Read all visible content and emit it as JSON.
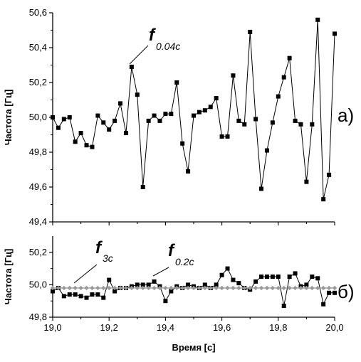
{
  "chart_data": [
    {
      "id": "a",
      "type": "line",
      "panel_label": "а)",
      "ylabel": "Частота [Гц]",
      "xlim": [
        19.0,
        20.0
      ],
      "ylim": [
        49.4,
        50.6
      ],
      "yticks": [
        "49,4",
        "49,6",
        "49,8",
        "50,0",
        "50,2",
        "50,4",
        "50,6"
      ],
      "annotations": [
        {
          "symbol": "f",
          "subscript": "0.04c",
          "x": 19.28,
          "y": 50.29
        }
      ],
      "series": [
        {
          "marker": "square",
          "color": "#000000",
          "x": [
            19.0,
            19.02,
            19.04,
            19.06,
            19.08,
            19.1,
            19.12,
            19.14,
            19.16,
            19.18,
            19.2,
            19.22,
            19.24,
            19.26,
            19.28,
            19.3,
            19.32,
            19.34,
            19.36,
            19.38,
            19.4,
            19.42,
            19.44,
            19.46,
            19.48,
            19.5,
            19.52,
            19.54,
            19.56,
            19.58,
            19.6,
            19.62,
            19.64,
            19.66,
            19.68,
            19.7,
            19.72,
            19.74,
            19.76,
            19.78,
            19.8,
            19.82,
            19.84,
            19.86,
            19.88,
            19.9,
            19.92,
            19.94,
            19.96,
            19.98,
            20.0
          ],
          "y": [
            50.0,
            49.94,
            49.99,
            50.0,
            49.86,
            49.91,
            49.84,
            49.83,
            50.01,
            49.97,
            49.93,
            49.98,
            50.08,
            49.91,
            50.29,
            50.13,
            49.6,
            49.98,
            50.01,
            49.98,
            50.02,
            50.02,
            50.2,
            49.85,
            49.69,
            50.01,
            50.03,
            50.04,
            50.06,
            50.11,
            49.89,
            49.89,
            50.24,
            49.98,
            49.96,
            50.49,
            49.99,
            49.59,
            49.81,
            49.97,
            50.12,
            50.23,
            50.34,
            49.98,
            49.96,
            49.63,
            49.96,
            50.56,
            49.53,
            49.67,
            50.48
          ]
        }
      ]
    },
    {
      "id": "b",
      "type": "line",
      "panel_label": "б)",
      "xlabel": "Время [с]",
      "ylabel": "Частота [Гц]",
      "xlim": [
        19.0,
        20.0
      ],
      "ylim": [
        49.8,
        50.3
      ],
      "xticks": [
        "19,0",
        "19,2",
        "19,4",
        "19,6",
        "19,8",
        "20,0"
      ],
      "yticks": [
        "49,8",
        "50,0",
        "50,2"
      ],
      "annotations": [
        {
          "symbol": "f",
          "subscript": "3c",
          "x": 19.07,
          "y": 49.99
        },
        {
          "symbol": "f",
          "subscript": "0.2c",
          "x": 19.36,
          "y": 50.02
        }
      ],
      "series": [
        {
          "marker": "square",
          "color": "#000000",
          "x": [
            19.0,
            19.02,
            19.04,
            19.06,
            19.08,
            19.1,
            19.12,
            19.14,
            19.16,
            19.18,
            19.2,
            19.22,
            19.24,
            19.26,
            19.28,
            19.3,
            19.32,
            19.34,
            19.36,
            19.38,
            19.4,
            19.42,
            19.44,
            19.46,
            19.48,
            19.5,
            19.52,
            19.54,
            19.56,
            19.58,
            19.6,
            19.62,
            19.64,
            19.66,
            19.68,
            19.7,
            19.72,
            19.74,
            19.76,
            19.78,
            19.8,
            19.82,
            19.84,
            19.86,
            19.88,
            19.9,
            19.92,
            19.94,
            19.96,
            19.98,
            20.0
          ],
          "y": [
            49.96,
            49.98,
            49.93,
            49.94,
            49.94,
            49.93,
            49.92,
            49.94,
            49.94,
            49.92,
            50.03,
            49.96,
            49.98,
            49.98,
            49.99,
            50.0,
            50.0,
            50.0,
            50.02,
            49.99,
            49.9,
            49.96,
            49.99,
            49.98,
            50.0,
            49.99,
            49.98,
            50.0,
            49.98,
            50.0,
            50.06,
            50.1,
            50.03,
            50.01,
            49.98,
            49.97,
            50.02,
            50.05,
            50.05,
            50.05,
            50.05,
            49.87,
            50.05,
            50.07,
            49.99,
            50.0,
            50.05,
            50.04,
            49.88,
            49.95,
            49.95
          ]
        },
        {
          "marker": "diamond",
          "color": "#999999",
          "x": [
            19.0,
            19.02,
            19.04,
            19.06,
            19.08,
            19.1,
            19.12,
            19.14,
            19.16,
            19.18,
            19.2,
            19.22,
            19.24,
            19.26,
            19.28,
            19.3,
            19.32,
            19.34,
            19.36,
            19.38,
            19.4,
            19.42,
            19.44,
            19.46,
            19.48,
            19.5,
            19.52,
            19.54,
            19.56,
            19.58,
            19.6,
            19.62,
            19.64,
            19.66,
            19.68,
            19.7,
            19.72,
            19.74,
            19.76,
            19.78,
            19.8,
            19.82,
            19.84,
            19.86,
            19.88,
            19.9,
            19.92,
            19.94,
            19.96,
            19.98,
            20.0
          ],
          "y": [
            49.98,
            49.98,
            49.98,
            49.98,
            49.98,
            49.98,
            49.98,
            49.98,
            49.98,
            49.98,
            49.98,
            49.98,
            49.98,
            49.98,
            49.98,
            49.98,
            49.98,
            49.98,
            49.98,
            49.98,
            49.98,
            49.98,
            49.98,
            49.98,
            49.98,
            49.98,
            49.98,
            49.98,
            49.98,
            49.98,
            49.98,
            49.98,
            49.98,
            49.98,
            49.98,
            49.98,
            49.98,
            49.98,
            49.98,
            49.98,
            49.98,
            49.98,
            49.98,
            49.98,
            49.98,
            49.98,
            49.98,
            49.98,
            49.98,
            49.98,
            49.98
          ]
        }
      ]
    }
  ]
}
